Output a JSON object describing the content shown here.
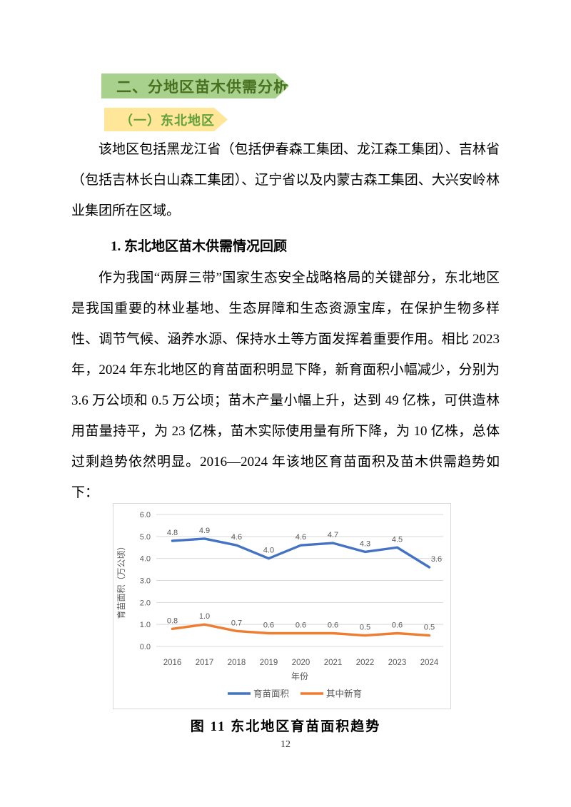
{
  "document": {
    "section_heading": "二、分地区苗木供需分析",
    "subsection_heading": "（一）东北地区",
    "numbered_heading": "1. 东北地区苗木供需情况回顾",
    "paragraphs": [
      "该地区包括黑龙江省（包括伊春森工集团、龙江森工集团）、吉林省（包括吉林长白山森工集团）、辽宁省以及内蒙古森工集团、大兴安岭林业集团所在区域。",
      "作为我国“两屏三带”国家生态安全战略格局的关键部分，东北地区是我国重要的林业基地、生态屏障和生态资源宝库，在保护生物多样性、调节气候、涵养水源、保持水土等方面发挥着重要作用。相比 2023 年，2024 年东北地区的育苗面积明显下降，新育面积小幅减少，分别为 3.6 万公顷和 0.5 万公顷；苗木产量小幅上升，达到 49 亿株，可供造林用苗量持平，为 23 亿株，苗木实际使用量有所下降，为 10 亿株，总体过剩趋势依然明显。2016—2024 年该地区育苗面积及苗木供需趋势如下："
    ],
    "figure_caption": "图 11 东北地区育苗面积趋势",
    "page_number": "12"
  },
  "chart_data": {
    "type": "line",
    "title": "",
    "categories": [
      "2016",
      "2017",
      "2018",
      "2019",
      "2020",
      "2021",
      "2022",
      "2023",
      "2024"
    ],
    "series": [
      {
        "name": "育苗面积",
        "color": "#4472c4",
        "values": [
          4.8,
          4.9,
          4.6,
          4.0,
          4.6,
          4.7,
          4.3,
          4.5,
          3.6
        ]
      },
      {
        "name": "其中新育",
        "color": "#ed7d31",
        "values": [
          0.8,
          1.0,
          0.7,
          0.6,
          0.6,
          0.6,
          0.5,
          0.6,
          0.5
        ]
      }
    ],
    "xlabel": "年份",
    "ylabel": "育苗面积（万公顷）",
    "ylim": [
      0.0,
      6.0
    ],
    "ytick_step": 1.0,
    "yticks": [
      "0.0",
      "1.0",
      "2.0",
      "3.0",
      "4.0",
      "5.0",
      "6.0"
    ],
    "grid": true,
    "data_labels": true,
    "legend_position": "bottom"
  },
  "colors": {
    "banner_green_bg": "#a9d18e",
    "banner_green_text": "#47711f",
    "banner_yellow_bg": "#ffe699",
    "banner_yellow_text": "#61a03c",
    "series_blue": "#4472c4",
    "series_orange": "#ed7d31",
    "axis_text": "#595959",
    "gridline": "#d9d9d9",
    "chart_border": "#d9d9d9"
  }
}
